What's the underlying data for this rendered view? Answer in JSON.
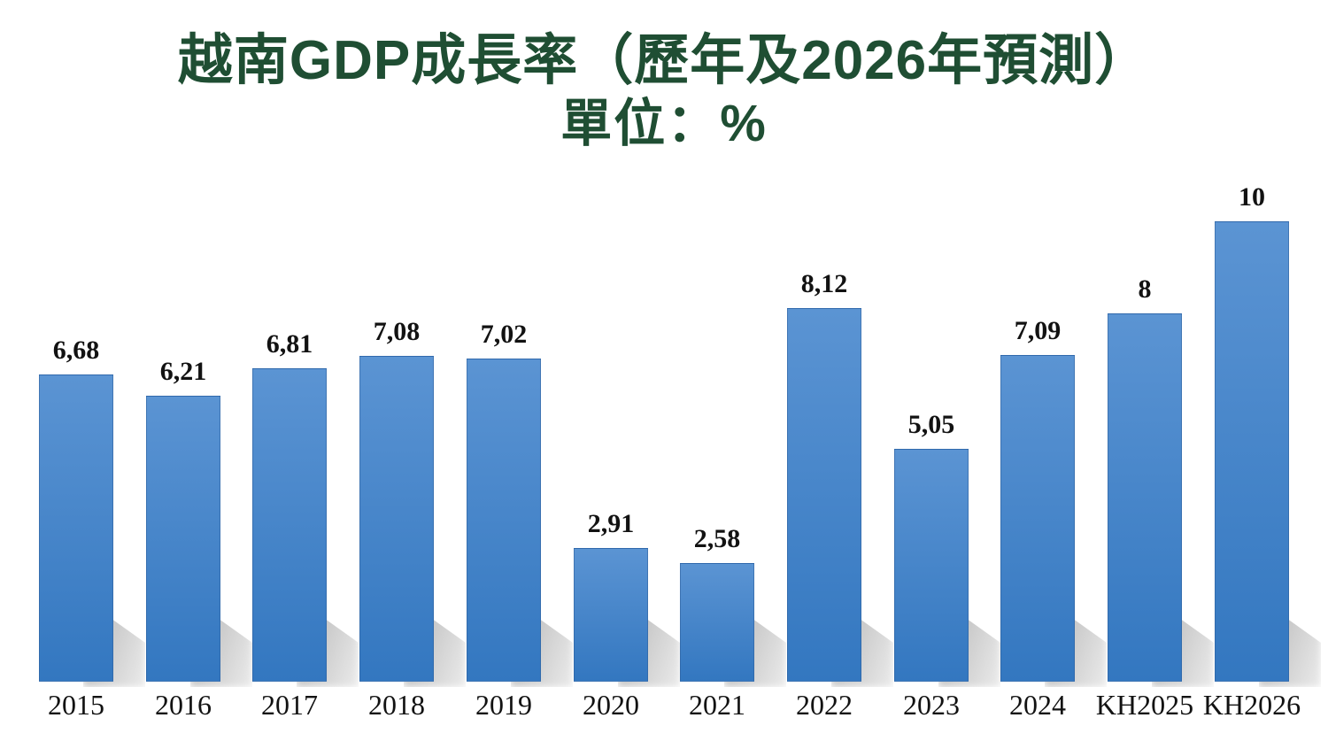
{
  "title": {
    "line1": "越南GDP成長率（歷年及2026年預測）",
    "line2": "單位：%"
  },
  "chart_data": {
    "type": "bar",
    "title": "越南GDP成長率（歷年及2026年預測）",
    "subtitle": "單位：%",
    "unit": "%",
    "categories": [
      "2015",
      "2016",
      "2017",
      "2018",
      "2019",
      "2020",
      "2021",
      "2022",
      "2023",
      "2024",
      "KH2025",
      "KH2026"
    ],
    "values": [
      6.68,
      6.21,
      6.81,
      7.08,
      7.02,
      2.91,
      2.58,
      8.12,
      5.05,
      7.09,
      8,
      10
    ],
    "value_labels": [
      "6,68",
      "6,21",
      "6,81",
      "7,08",
      "7,02",
      "2,91",
      "2,58",
      "8,12",
      "5,05",
      "7,09",
      "8",
      "10"
    ],
    "decimal_separator": ",",
    "ylim": [
      0,
      10.8
    ],
    "grid": false,
    "legend": false,
    "axis_lines": false,
    "bar_effect": "soft perspective shadow cast to bottom-right of each bar",
    "colors": {
      "bar_top": "#5b94d3",
      "bar_bottom": "#3377c0",
      "bar_edge": "#2d5f9b",
      "shadow": "#bdbdbd",
      "title": "#1f4e33",
      "label": "#121212",
      "background": "#ffffff"
    }
  }
}
